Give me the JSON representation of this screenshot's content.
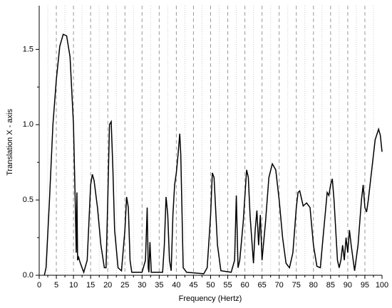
{
  "chart_data": {
    "type": "line",
    "x_label": "Frequency (Hertz)",
    "y_label": "Translation X - axis",
    "xlim": [
      0,
      100
    ],
    "ylim": [
      0,
      1.79
    ],
    "xticks": [
      0,
      5,
      10,
      15,
      20,
      25,
      30,
      35,
      40,
      45,
      50,
      55,
      60,
      65,
      70,
      75,
      80,
      85,
      90,
      95,
      100
    ],
    "yticks": [
      {
        "value": 0,
        "label": "0.0"
      },
      0.5,
      {
        "value": 1,
        "label": "1.0"
      },
      1.5
    ],
    "xgrid": true,
    "series": [
      {
        "color": "#000000",
        "x": [
          1.5,
          2,
          3,
          4,
          5,
          6,
          7,
          8,
          9,
          10,
          10.5,
          10.8,
          11,
          11.2,
          11.5,
          12,
          13,
          14,
          15,
          15.5,
          16,
          17,
          18,
          19,
          19.5,
          20,
          20.5,
          21,
          21.5,
          22,
          23,
          24,
          25,
          25.5,
          26,
          26.5,
          27,
          30,
          31,
          31.5,
          31.8,
          32,
          32.3,
          32.7,
          36,
          36.5,
          37,
          37.5,
          38,
          38.5,
          39,
          39.5,
          40,
          40.5,
          41,
          41.3,
          42,
          43,
          48,
          49,
          50,
          50.5,
          51,
          52,
          53,
          56,
          57,
          57.5,
          58,
          58.5,
          59.5,
          60.5,
          61,
          61.5,
          62.5,
          63,
          63.5,
          64,
          64.5,
          65,
          66,
          67,
          68,
          69,
          70,
          71,
          72,
          73,
          74,
          75,
          75.5,
          76,
          77,
          78,
          79,
          80,
          81,
          82,
          83,
          84,
          84.5,
          85,
          85.5,
          86,
          87,
          87.5,
          88,
          88.5,
          89,
          89.5,
          90,
          90.5,
          91,
          92,
          93,
          94,
          94.5,
          95,
          95.5,
          96,
          97,
          98,
          99,
          99.5,
          100
        ],
        "values": [
          0,
          0.05,
          0.5,
          1.0,
          1.3,
          1.52,
          1.6,
          1.59,
          1.45,
          1.0,
          0.5,
          0.15,
          0.55,
          0.1,
          0.12,
          0.08,
          0.02,
          0.1,
          0.6,
          0.67,
          0.63,
          0.45,
          0.2,
          0.05,
          0.05,
          0.5,
          1.0,
          1.02,
          0.7,
          0.3,
          0.05,
          0.03,
          0.3,
          0.52,
          0.45,
          0.1,
          0.02,
          0.02,
          0.1,
          0.45,
          0.05,
          0.02,
          0.22,
          0.02,
          0.02,
          0.2,
          0.52,
          0.4,
          0.1,
          0.03,
          0.4,
          0.6,
          0.68,
          0.8,
          0.94,
          0.8,
          0.05,
          0.02,
          0.01,
          0.05,
          0.4,
          0.68,
          0.65,
          0.2,
          0.03,
          0.02,
          0.1,
          0.53,
          0.05,
          0.1,
          0.35,
          0.7,
          0.65,
          0.4,
          0.08,
          0.3,
          0.43,
          0.2,
          0.4,
          0.1,
          0.35,
          0.65,
          0.74,
          0.7,
          0.5,
          0.25,
          0.08,
          0.05,
          0.15,
          0.45,
          0.55,
          0.56,
          0.46,
          0.48,
          0.45,
          0.2,
          0.06,
          0.05,
          0.3,
          0.55,
          0.53,
          0.6,
          0.64,
          0.5,
          0.1,
          0.05,
          0.1,
          0.2,
          0.1,
          0.25,
          0.15,
          0.3,
          0.2,
          0.03,
          0.2,
          0.5,
          0.6,
          0.45,
          0.42,
          0.5,
          0.7,
          0.9,
          0.97,
          0.93,
          0.82
        ]
      }
    ]
  }
}
